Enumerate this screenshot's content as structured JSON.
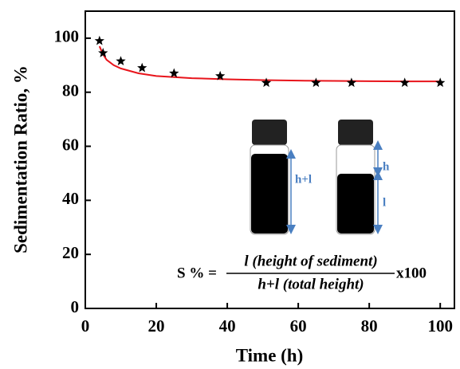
{
  "chart_data": {
    "type": "scatter",
    "x_label": "Time (h)",
    "y_label": "Sedimentation Ratio, %",
    "points": {
      "x": [
        4,
        5,
        10,
        16,
        25,
        38,
        51,
        65,
        75,
        90,
        100
      ],
      "values": [
        99,
        94.5,
        91.5,
        89,
        87,
        86,
        83.5,
        83.5,
        83.5,
        83.5,
        83.5
      ],
      "color": "#000000"
    },
    "fit": {
      "x": [
        4,
        5,
        6,
        8,
        10,
        15,
        20,
        30,
        40,
        50,
        60,
        70,
        80,
        90,
        100
      ],
      "values": [
        97,
        94,
        92,
        90,
        88.8,
        87,
        86,
        85.2,
        84.8,
        84.5,
        84.3,
        84.2,
        84.1,
        84,
        84
      ],
      "color": "#e8141b"
    },
    "xlim": [
      0,
      104
    ],
    "ylim": [
      0,
      110
    ],
    "xticks": [
      0,
      20,
      40,
      60,
      80,
      100
    ],
    "yticks": [
      0,
      20,
      40,
      60,
      80,
      100
    ],
    "vial_labels": [
      "h+l",
      "h",
      "l"
    ],
    "formula": {
      "lhs": "S % =",
      "numerator": "l (height of sediment)",
      "denominator": "h+l (total height)",
      "factor": "x100"
    }
  }
}
